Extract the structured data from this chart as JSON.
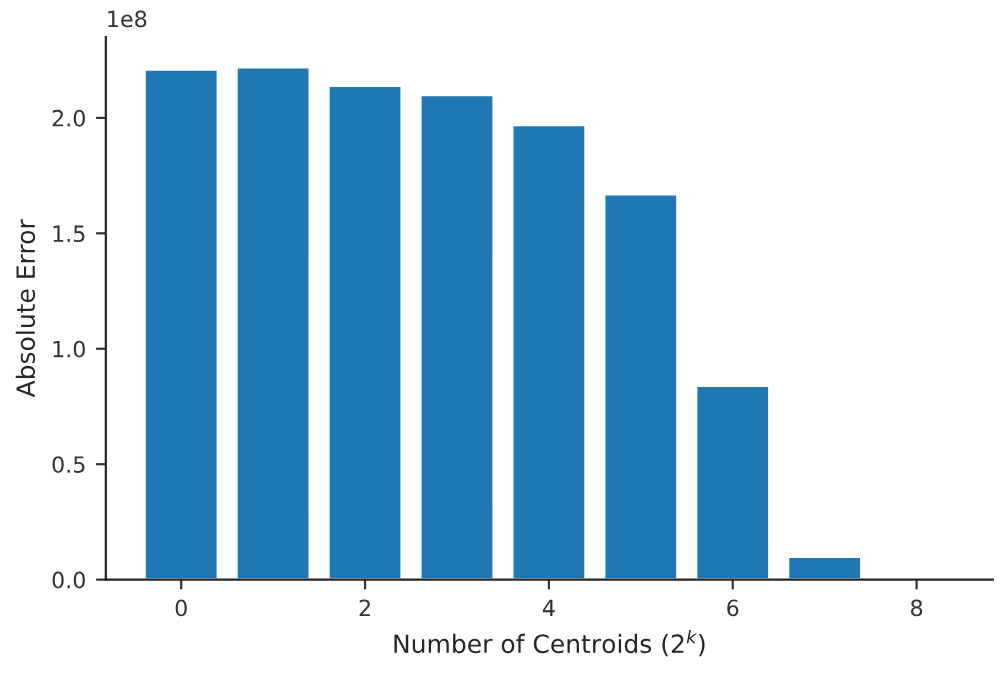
{
  "chart_data": {
    "type": "bar",
    "xlabel": "Number of Centroids (2$^{k}$)",
    "ylabel": "Absolute Error",
    "x": [
      0,
      1,
      2,
      3,
      4,
      5,
      6,
      7
    ],
    "values": [
      2.21,
      2.22,
      2.14,
      2.1,
      1.97,
      1.67,
      0.84,
      0.1
    ],
    "color": "#1f77b4",
    "xlim": [
      -0.82,
      8.83
    ],
    "xticks": [
      0,
      2,
      4,
      6,
      8
    ],
    "ylim": [
      0,
      2.35
    ],
    "yticks": [
      {
        "value": 0,
        "label": "0.0"
      },
      0.5,
      {
        "value": 1,
        "label": "1.0"
      },
      1.5,
      {
        "value": 2,
        "label": "2.0"
      }
    ],
    "annotations": [
      "1e8"
    ],
    "grid": false,
    "legend": false
  }
}
